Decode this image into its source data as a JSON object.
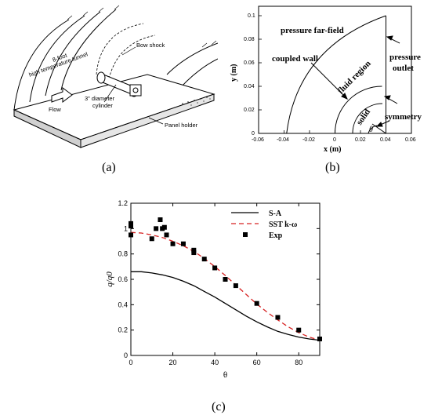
{
  "figure": {
    "panel_labels": {
      "a": "(a)",
      "b": "(b)",
      "c": "(c)"
    }
  },
  "panel_a": {
    "labels": {
      "tunnel_line1": "8-foot",
      "tunnel_line2": "high temperature tunnel",
      "bow_shock": "Bow shock",
      "cylinder_line1": "3\" diameter",
      "cylinder_line2": "cylinder",
      "flow": "Flow",
      "panel_holder": "Panel holder"
    }
  },
  "panel_b": {
    "labels": {
      "pressure_far_field": "pressure far-field",
      "coupled_wall": "coupled wall",
      "fluid_region": "fluid region",
      "pressure_outlet_1": "pressure",
      "pressure_outlet_2": "outlet",
      "solid": "solid",
      "symmetry": "symmetry",
      "theta": "θ"
    },
    "xlabel": "x (m)",
    "ylabel": "y (m)",
    "xticks": [
      "-0.06",
      "-0.04",
      "-0.02",
      "0",
      "0.02",
      "0.04",
      "0.06"
    ],
    "yticks": [
      "0",
      "0.02",
      "0.04",
      "0.06",
      "0.08",
      "0.1"
    ]
  },
  "chart_data": {
    "type": "line",
    "xlabel": "θ",
    "ylabel": "q/q0",
    "xlim": [
      0,
      90
    ],
    "ylim": [
      0,
      1.2
    ],
    "xticks": [
      0,
      20,
      40,
      60,
      80
    ],
    "yticks": [
      0,
      0.2,
      0.4,
      0.6,
      0.8,
      1,
      1.2
    ],
    "legend_position": "top-right",
    "series": [
      {
        "name": "S-A",
        "style": "solid",
        "color": "#000000",
        "x": [
          0,
          5,
          10,
          15,
          20,
          25,
          30,
          35,
          40,
          45,
          50,
          55,
          60,
          65,
          70,
          75,
          80,
          85,
          90
        ],
        "y": [
          0.66,
          0.66,
          0.65,
          0.635,
          0.615,
          0.585,
          0.55,
          0.505,
          0.46,
          0.41,
          0.36,
          0.31,
          0.265,
          0.225,
          0.19,
          0.165,
          0.145,
          0.13,
          0.12
        ]
      },
      {
        "name": "SST k-ω",
        "style": "dashed",
        "color": "#d62020",
        "x": [
          0,
          5,
          10,
          15,
          20,
          25,
          30,
          35,
          40,
          45,
          50,
          55,
          60,
          65,
          70,
          75,
          80,
          85,
          90
        ],
        "y": [
          0.97,
          0.965,
          0.95,
          0.93,
          0.9,
          0.865,
          0.82,
          0.765,
          0.7,
          0.63,
          0.555,
          0.48,
          0.405,
          0.34,
          0.28,
          0.225,
          0.18,
          0.145,
          0.12
        ]
      },
      {
        "name": "Exp",
        "style": "markers",
        "color": "#000000",
        "x": [
          0,
          0,
          0,
          10,
          12,
          14,
          15,
          16,
          17,
          20,
          25,
          30,
          30,
          35,
          40,
          45,
          50,
          60,
          70,
          80,
          90
        ],
        "y": [
          1.04,
          1.02,
          0.95,
          0.92,
          1.0,
          1.07,
          1.0,
          1.01,
          0.95,
          0.88,
          0.88,
          0.83,
          0.81,
          0.76,
          0.69,
          0.6,
          0.55,
          0.41,
          0.3,
          0.2,
          0.13
        ]
      }
    ]
  }
}
